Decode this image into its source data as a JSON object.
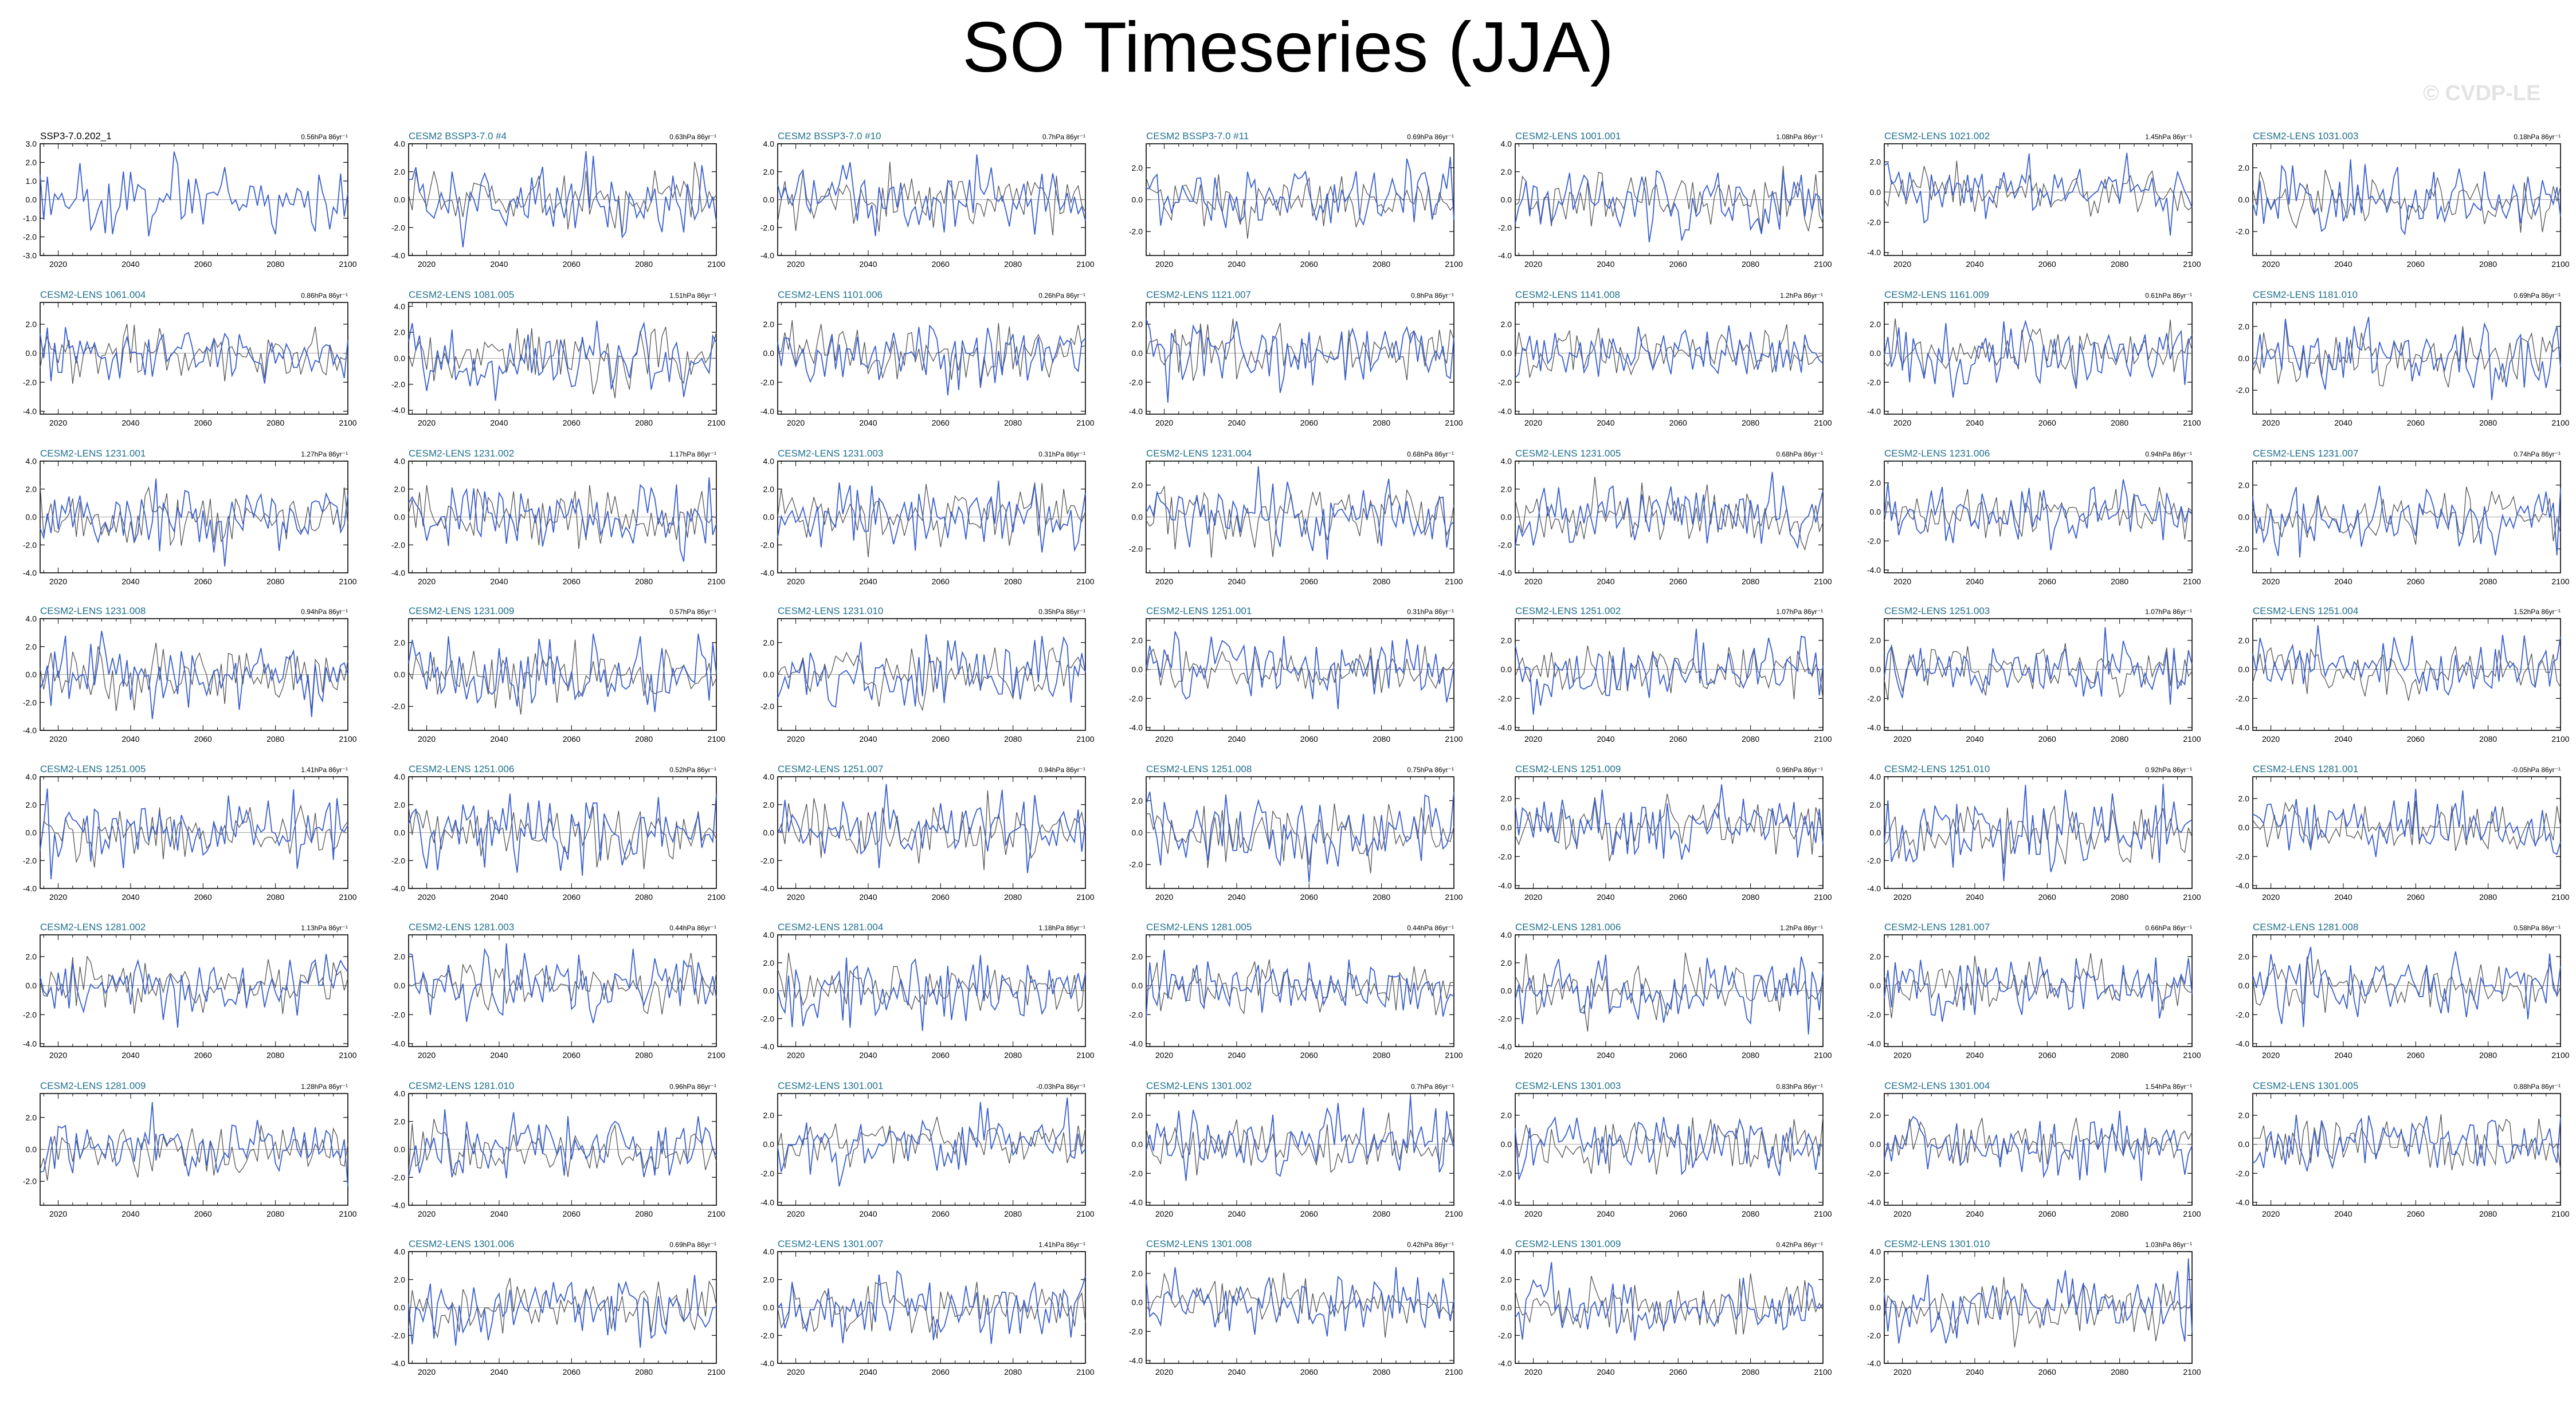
{
  "page": {
    "title": "SO Timeseries (JJA)",
    "watermark": "© CVDP-LE"
  },
  "chart_data": {
    "type": "line",
    "series_colors": {
      "observations": "#000000",
      "ensemble_member": "#3a5fcd",
      "ensemble_mean": "#555555"
    },
    "x_ticks": [
      2020,
      2040,
      2060,
      2080,
      2100
    ],
    "xlim": [
      2015,
      2100
    ],
    "panels": [
      {
        "title": "SSP3-7.0.202_1",
        "trend": "0.56hPa 86yr⁻¹",
        "yticks": [
          "3.0",
          "2.0",
          "1.0",
          "0.0",
          "-1.0",
          "-2.0",
          "-3.0"
        ],
        "ylim": [
          -3,
          3
        ],
        "is_reference": true
      },
      {
        "title": "CESM2 BSSP3-7.0 #4",
        "trend": "0.63hPa 86yr⁻¹",
        "yticks": [
          "4.0",
          "2.0",
          "0.0",
          "-2.0",
          "-4.0"
        ],
        "ylim": [
          -4,
          4
        ]
      },
      {
        "title": "CESM2 BSSP3-7.0 #10",
        "trend": "0.7hPa 86yr⁻¹",
        "yticks": [
          "4.0",
          "2.0",
          "0.0",
          "-2.0",
          "-4.0"
        ],
        "ylim": [
          -4,
          4
        ]
      },
      {
        "title": "CESM2 BSSP3-7.0 #11",
        "trend": "0.69hPa 86yr⁻¹",
        "yticks": [
          "2.0",
          "0.0",
          "-2.0"
        ],
        "ylim": [
          -3.5,
          3.5
        ]
      },
      {
        "title": "CESM2-LENS 1001.001",
        "trend": "1.08hPa 86yr⁻¹",
        "yticks": [
          "4.0",
          "2.0",
          "0.0",
          "-2.0",
          "-4.0"
        ],
        "ylim": [
          -4,
          4
        ]
      },
      {
        "title": "CESM2-LENS 1021.002",
        "trend": "1.45hPa 86yr⁻¹",
        "yticks": [
          "2.0",
          "0.0",
          "-2.0",
          "-4.0"
        ],
        "ylim": [
          -4.2,
          3.2
        ]
      },
      {
        "title": "CESM2-LENS 1031.003",
        "trend": "0.18hPa 86yr⁻¹",
        "yticks": [
          "2.0",
          "0.0",
          "-2.0"
        ],
        "ylim": [
          -3.5,
          3.5
        ]
      },
      {
        "title": "CESM2-LENS 1061.004",
        "trend": "0.86hPa 86yr⁻¹",
        "yticks": [
          "2.0",
          "0.0",
          "-2.0",
          "-4.0"
        ],
        "ylim": [
          -4.2,
          3.5
        ]
      },
      {
        "title": "CESM2-LENS 1081.005",
        "trend": "1.51hPa 86yr⁻¹",
        "yticks": [
          "4.0",
          "2.0",
          "0.0",
          "-2.0",
          "-4.0"
        ],
        "ylim": [
          -4.3,
          4.3
        ]
      },
      {
        "title": "CESM2-LENS 1101.006",
        "trend": "0.26hPa 86yr⁻¹",
        "yticks": [
          "2.0",
          "0.0",
          "-2.0",
          "-4.0"
        ],
        "ylim": [
          -4.2,
          3.5
        ]
      },
      {
        "title": "CESM2-LENS 1121.007",
        "trend": "0.8hPa 86yr⁻¹",
        "yticks": [
          "2.0",
          "0.0",
          "-2.0",
          "-4.0"
        ],
        "ylim": [
          -4.2,
          3.5
        ]
      },
      {
        "title": "CESM2-LENS 1141.008",
        "trend": "1.2hPa 86yr⁻¹",
        "yticks": [
          "2.0",
          "0.0",
          "-2.0",
          "-4.0"
        ],
        "ylim": [
          -4.2,
          3.5
        ]
      },
      {
        "title": "CESM2-LENS 1161.009",
        "trend": "0.61hPa 86yr⁻¹",
        "yticks": [
          "2.0",
          "0.0",
          "-2.0",
          "-4.0"
        ],
        "ylim": [
          -4.2,
          3.5
        ]
      },
      {
        "title": "CESM2-LENS 1181.010",
        "trend": "0.69hPa 86yr⁻¹",
        "yticks": [
          "2.0",
          "0.0",
          "-2.0"
        ],
        "ylim": [
          -3.5,
          3.5
        ]
      },
      {
        "title": "CESM2-LENS 1231.001",
        "trend": "1.27hPa 86yr⁻¹",
        "yticks": [
          "4.0",
          "2.0",
          "0.0",
          "-2.0",
          "-4.0"
        ],
        "ylim": [
          -4,
          4
        ]
      },
      {
        "title": "CESM2-LENS 1231.002",
        "trend": "1.17hPa 86yr⁻¹",
        "yticks": [
          "4.0",
          "2.0",
          "0.0",
          "-2.0",
          "-4.0"
        ],
        "ylim": [
          -4,
          4
        ]
      },
      {
        "title": "CESM2-LENS 1231.003",
        "trend": "0.31hPa 86yr⁻¹",
        "yticks": [
          "4.0",
          "2.0",
          "0.0",
          "-2.0",
          "-4.0"
        ],
        "ylim": [
          -4,
          4
        ]
      },
      {
        "title": "CESM2-LENS 1231.004",
        "trend": "0.68hPa 86yr⁻¹",
        "yticks": [
          "2.0",
          "0.0",
          "-2.0"
        ],
        "ylim": [
          -3.5,
          3.5
        ]
      },
      {
        "title": "CESM2-LENS 1231.005",
        "trend": "0.68hPa 86yr⁻¹",
        "yticks": [
          "4.0",
          "2.0",
          "0.0",
          "-2.0",
          "-4.0"
        ],
        "ylim": [
          -4,
          4
        ]
      },
      {
        "title": "CESM2-LENS 1231.006",
        "trend": "0.94hPa 86yr⁻¹",
        "yticks": [
          "2.0",
          "0.0",
          "-2.0",
          "-4.0"
        ],
        "ylim": [
          -4.2,
          3.5
        ]
      },
      {
        "title": "CESM2-LENS 1231.007",
        "trend": "0.74hPa 86yr⁻¹",
        "yticks": [
          "2.0",
          "0.0",
          "-2.0"
        ],
        "ylim": [
          -3.5,
          3.5
        ]
      },
      {
        "title": "CESM2-LENS 1231.008",
        "trend": "0.94hPa 86yr⁻¹",
        "yticks": [
          "4.0",
          "2.0",
          "0.0",
          "-2.0",
          "-4.0"
        ],
        "ylim": [
          -4,
          4
        ]
      },
      {
        "title": "CESM2-LENS 1231.009",
        "trend": "0.57hPa 86yr⁻¹",
        "yticks": [
          "2.0",
          "0.0",
          "-2.0"
        ],
        "ylim": [
          -3.5,
          3.5
        ]
      },
      {
        "title": "CESM2-LENS 1231.010",
        "trend": "0.35hPa 86yr⁻¹",
        "yticks": [
          "2.0",
          "0.0",
          "-2.0"
        ],
        "ylim": [
          -3.5,
          3.5
        ]
      },
      {
        "title": "CESM2-LENS 1251.001",
        "trend": "0.31hPa 86yr⁻¹",
        "yticks": [
          "2.0",
          "0.0",
          "-2.0",
          "-4.0"
        ],
        "ylim": [
          -4.2,
          3.5
        ]
      },
      {
        "title": "CESM2-LENS 1251.002",
        "trend": "1.07hPa 86yr⁻¹",
        "yticks": [
          "2.0",
          "0.0",
          "-2.0",
          "-4.0"
        ],
        "ylim": [
          -4.2,
          3.5
        ]
      },
      {
        "title": "CESM2-LENS 1251.003",
        "trend": "1.07hPa 86yr⁻¹",
        "yticks": [
          "2.0",
          "0.0",
          "-2.0",
          "-4.0"
        ],
        "ylim": [
          -4.2,
          3.5
        ]
      },
      {
        "title": "CESM2-LENS 1251.004",
        "trend": "1.52hPa 86yr⁻¹",
        "yticks": [
          "2.0",
          "0.0",
          "-2.0",
          "-4.0"
        ],
        "ylim": [
          -4.2,
          3.5
        ]
      },
      {
        "title": "CESM2-LENS 1251.005",
        "trend": "1.41hPa 86yr⁻¹",
        "yticks": [
          "4.0",
          "2.0",
          "0.0",
          "-2.0",
          "-4.0"
        ],
        "ylim": [
          -4,
          4
        ]
      },
      {
        "title": "CESM2-LENS 1251.006",
        "trend": "0.52hPa 86yr⁻¹",
        "yticks": [
          "4.0",
          "2.0",
          "0.0",
          "-2.0",
          "-4.0"
        ],
        "ylim": [
          -4,
          4
        ]
      },
      {
        "title": "CESM2-LENS 1251.007",
        "trend": "0.94hPa 86yr⁻¹",
        "yticks": [
          "4.0",
          "2.0",
          "0.0",
          "-2.0",
          "-4.0"
        ],
        "ylim": [
          -4,
          4
        ]
      },
      {
        "title": "CESM2-LENS 1251.008",
        "trend": "0.75hPa 86yr⁻¹",
        "yticks": [
          "2.0",
          "0.0",
          "-2.0"
        ],
        "ylim": [
          -3.5,
          3.5
        ]
      },
      {
        "title": "CESM2-LENS 1251.009",
        "trend": "0.96hPa 86yr⁻¹",
        "yticks": [
          "2.0",
          "0.0",
          "-2.0",
          "-4.0"
        ],
        "ylim": [
          -4.2,
          3.5
        ]
      },
      {
        "title": "CESM2-LENS 1251.010",
        "trend": "0.92hPa 86yr⁻¹",
        "yticks": [
          "4.0",
          "2.0",
          "0.0",
          "-2.0",
          "-4.0"
        ],
        "ylim": [
          -4,
          4
        ]
      },
      {
        "title": "CESM2-LENS 1281.001",
        "trend": "-0.05hPa 86yr⁻¹",
        "yticks": [
          "2.0",
          "0.0",
          "-2.0",
          "-4.0"
        ],
        "ylim": [
          -4.2,
          3.5
        ]
      },
      {
        "title": "CESM2-LENS 1281.002",
        "trend": "1.13hPa 86yr⁻¹",
        "yticks": [
          "2.0",
          "0.0",
          "-2.0",
          "-4.0"
        ],
        "ylim": [
          -4.2,
          3.5
        ]
      },
      {
        "title": "CESM2-LENS 1281.003",
        "trend": "0.44hPa 86yr⁻¹",
        "yticks": [
          "2.0",
          "0.0",
          "-2.0",
          "-4.0"
        ],
        "ylim": [
          -4.2,
          3.5
        ]
      },
      {
        "title": "CESM2-LENS 1281.004",
        "trend": "1.18hPa 86yr⁻¹",
        "yticks": [
          "4.0",
          "2.0",
          "0.0",
          "-2.0",
          "-4.0"
        ],
        "ylim": [
          -4,
          4
        ]
      },
      {
        "title": "CESM2-LENS 1281.005",
        "trend": "0.44hPa 86yr⁻¹",
        "yticks": [
          "2.0",
          "0.0",
          "-2.0",
          "-4.0"
        ],
        "ylim": [
          -4.2,
          3.5
        ]
      },
      {
        "title": "CESM2-LENS 1281.006",
        "trend": "1.2hPa 86yr⁻¹",
        "yticks": [
          "4.0",
          "2.0",
          "0.0",
          "-2.0",
          "-4.0"
        ],
        "ylim": [
          -4,
          4
        ]
      },
      {
        "title": "CESM2-LENS 1281.007",
        "trend": "0.66hPa 86yr⁻¹",
        "yticks": [
          "2.0",
          "0.0",
          "-2.0",
          "-4.0"
        ],
        "ylim": [
          -4.2,
          3.5
        ]
      },
      {
        "title": "CESM2-LENS 1281.008",
        "trend": "0.58hPa 86yr⁻¹",
        "yticks": [
          "2.0",
          "0.0",
          "-2.0",
          "-4.0"
        ],
        "ylim": [
          -4.2,
          3.5
        ]
      },
      {
        "title": "CESM2-LENS 1281.009",
        "trend": "1.28hPa 86yr⁻¹",
        "yticks": [
          "2.0",
          "0.0",
          "-2.0"
        ],
        "ylim": [
          -3.5,
          3.5
        ]
      },
      {
        "title": "CESM2-LENS 1281.010",
        "trend": "0.96hPa 86yr⁻¹",
        "yticks": [
          "4.0",
          "2.0",
          "0.0",
          "-2.0",
          "-4.0"
        ],
        "ylim": [
          -4,
          4
        ]
      },
      {
        "title": "CESM2-LENS 1301.001",
        "trend": "-0.03hPa 86yr⁻¹",
        "yticks": [
          "2.0",
          "0.0",
          "-2.0",
          "-4.0"
        ],
        "ylim": [
          -4.2,
          3.5
        ]
      },
      {
        "title": "CESM2-LENS 1301.002",
        "trend": "0.7hPa 86yr⁻¹",
        "yticks": [
          "2.0",
          "0.0",
          "-2.0",
          "-4.0"
        ],
        "ylim": [
          -4.2,
          3.5
        ]
      },
      {
        "title": "CESM2-LENS 1301.003",
        "trend": "0.83hPa 86yr⁻¹",
        "yticks": [
          "2.0",
          "0.0",
          "-2.0",
          "-4.0"
        ],
        "ylim": [
          -4.2,
          3.5
        ]
      },
      {
        "title": "CESM2-LENS 1301.004",
        "trend": "1.54hPa 86yr⁻¹",
        "yticks": [
          "2.0",
          "0.0",
          "-2.0",
          "-4.0"
        ],
        "ylim": [
          -4.2,
          3.5
        ]
      },
      {
        "title": "CESM2-LENS 1301.005",
        "trend": "0.88hPa 86yr⁻¹",
        "yticks": [
          "2.0",
          "0.0",
          "-2.0",
          "-4.0"
        ],
        "ylim": [
          -4.2,
          3.5
        ]
      },
      {
        "title": "CESM2-LENS 1301.006",
        "trend": "0.69hPa 86yr⁻¹",
        "yticks": [
          "4.0",
          "2.0",
          "0.0",
          "-2.0",
          "-4.0"
        ],
        "ylim": [
          -4,
          4
        ]
      },
      {
        "title": "CESM2-LENS 1301.007",
        "trend": "1.41hPa 86yr⁻¹",
        "yticks": [
          "4.0",
          "2.0",
          "0.0",
          "-2.0",
          "-4.0"
        ],
        "ylim": [
          -4,
          4
        ]
      },
      {
        "title": "CESM2-LENS 1301.008",
        "trend": "0.42hPa 86yr⁻¹",
        "yticks": [
          "2.0",
          "0.0",
          "-2.0",
          "-4.0"
        ],
        "ylim": [
          -4.2,
          3.5
        ]
      },
      {
        "title": "CESM2-LENS 1301.009",
        "trend": "0.42hPa 86yr⁻¹",
        "yticks": [
          "4.0",
          "2.0",
          "0.0",
          "-2.0",
          "-4.0"
        ],
        "ylim": [
          -4,
          4
        ]
      },
      {
        "title": "CESM2-LENS 1301.010",
        "trend": "1.03hPa 86yr⁻¹",
        "yticks": [
          "4.0",
          "2.0",
          "0.0",
          "-2.0",
          "-4.0"
        ],
        "ylim": [
          -4,
          4
        ]
      }
    ]
  }
}
